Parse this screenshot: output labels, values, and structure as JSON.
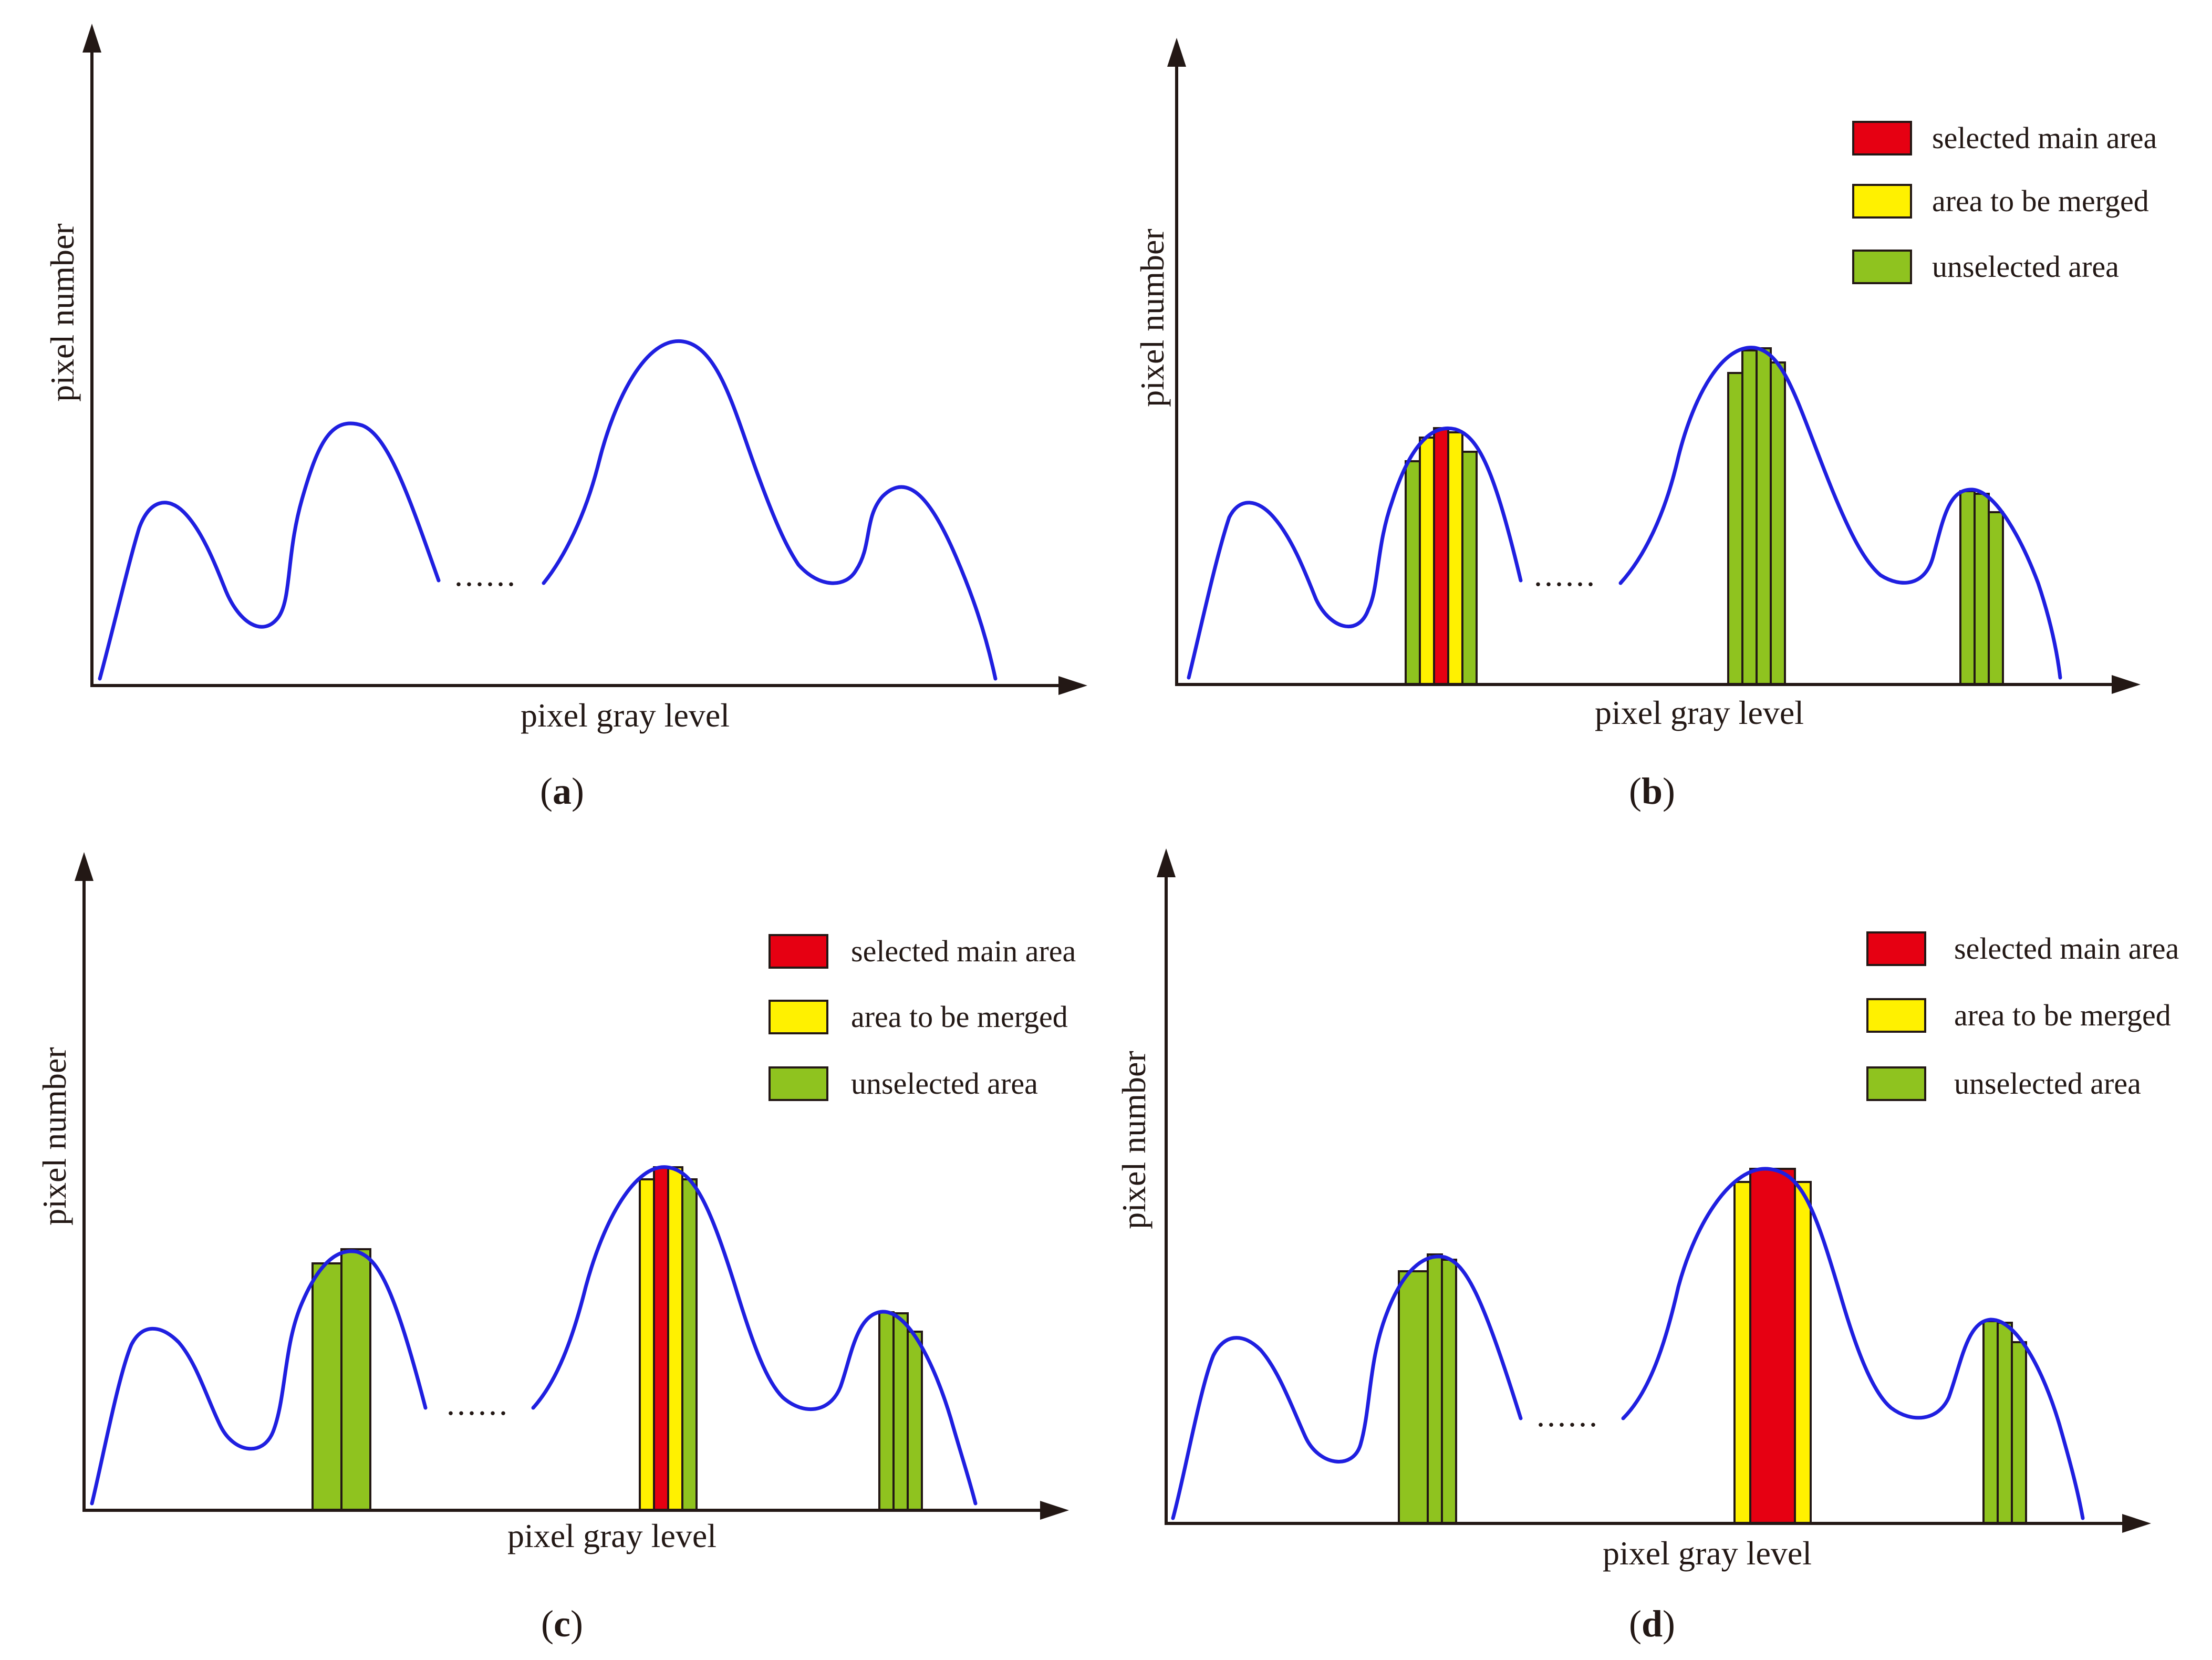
{
  "legend": {
    "items": [
      {
        "label": "selected main area",
        "color": "#e60012"
      },
      {
        "label": "area to be merged",
        "color": "#fff100"
      },
      {
        "label": "unselected area",
        "color": "#8fc31f"
      }
    ]
  },
  "colors": {
    "curve": "#1f1fe0",
    "axis": "#231815",
    "stripe_outline": "#231815"
  },
  "panels": [
    {
      "id": "a",
      "caption_letter": "a",
      "xlabel": "pixel gray level",
      "ylabel": "pixel number",
      "ellipsis": "......",
      "has_legend": false,
      "bars": []
    },
    {
      "id": "b",
      "caption_letter": "b",
      "xlabel": "pixel gray level",
      "ylabel": "pixel number",
      "ellipsis": "......",
      "has_legend": true,
      "bars": [
        {
          "peak": 2,
          "stripes": [
            "unselected",
            "merge",
            "main",
            "merge",
            "unselected"
          ]
        },
        {
          "peak": 3,
          "stripes": [
            "unselected",
            "unselected",
            "unselected",
            "unselected"
          ]
        },
        {
          "peak": 4,
          "stripes": [
            "unselected",
            "unselected",
            "unselected"
          ]
        }
      ]
    },
    {
      "id": "c",
      "caption_letter": "c",
      "xlabel": "pixel gray level",
      "ylabel": "pixel number",
      "ellipsis": "......",
      "has_legend": true,
      "bars": [
        {
          "peak": 2,
          "stripes": [
            "unselected",
            "unselected"
          ]
        },
        {
          "peak": 3,
          "stripes": [
            "merge",
            "main",
            "merge",
            "unselected"
          ]
        },
        {
          "peak": 4,
          "stripes": [
            "unselected",
            "unselected",
            "unselected"
          ]
        }
      ]
    },
    {
      "id": "d",
      "caption_letter": "d",
      "xlabel": "pixel gray level",
      "ylabel": "pixel number",
      "ellipsis": "......",
      "has_legend": true,
      "bars": [
        {
          "peak": 2,
          "stripes": [
            "unselected",
            "unselected",
            "unselected"
          ]
        },
        {
          "peak": 3,
          "stripes": [
            "merge",
            "main",
            "merge"
          ]
        },
        {
          "peak": 4,
          "stripes": [
            "unselected",
            "unselected",
            "unselected"
          ]
        }
      ]
    }
  ]
}
